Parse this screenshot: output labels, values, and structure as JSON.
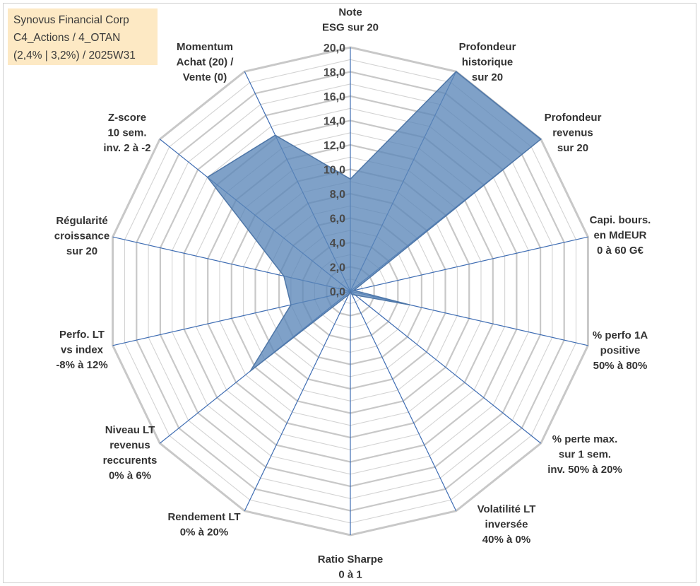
{
  "title": {
    "line1": "Synovus Financial Corp",
    "line2": "C4_Actions / 4_OTAN",
    "line3": "(2,4% | 3,2%) / 2025W31"
  },
  "colors": {
    "fill": "#5b86b8",
    "stroke": "#4f77a8",
    "grid": "#c8c8c8",
    "spoke": "#3f6db3",
    "title_bg": "#fde9c4"
  },
  "chart_data": {
    "type": "radar",
    "rmin": 0,
    "rmax": 20,
    "tick_labels": [
      "0,0",
      "2,0",
      "4,0",
      "6,0",
      "8,0",
      "10,0",
      "12,0",
      "14,0",
      "16,0",
      "18,0",
      "20,0"
    ],
    "categories": [
      [
        "Note",
        "ESG sur 20"
      ],
      [
        "Profondeur",
        "historique",
        "sur 20"
      ],
      [
        "Profondeur",
        "revenus",
        "sur 20"
      ],
      [
        "Capi. bours.",
        "en MdEUR",
        "0 à 60 G€"
      ],
      [
        "% perfo 1A",
        "positive",
        "50% à 80%"
      ],
      [
        "% perte max.",
        "sur 1 sem.",
        "inv. 50% à 20%"
      ],
      [
        "Volatilité LT",
        "inversée",
        "40% à 0%"
      ],
      [
        "Ratio Sharpe",
        "0 à 1"
      ],
      [
        "Rendement LT",
        "0% à 20%"
      ],
      [
        "Niveau LT",
        "revenus",
        "reccurents",
        "0% à 6%"
      ],
      [
        "Perfo. LT",
        "vs index",
        "-8% à 12%"
      ],
      [
        "Régularité",
        "croissance",
        "sur 20"
      ],
      [
        "Z-score",
        "10 sem.",
        "inv. 2 à -2"
      ],
      [
        "Momentum",
        "Achat (20) /",
        "Vente (0)"
      ]
    ],
    "values": [
      9.2,
      20,
      20,
      0.3,
      5.0,
      0.5,
      0.3,
      0,
      0.3,
      10.5,
      5.0,
      5.6,
      15.0,
      14.2
    ]
  }
}
